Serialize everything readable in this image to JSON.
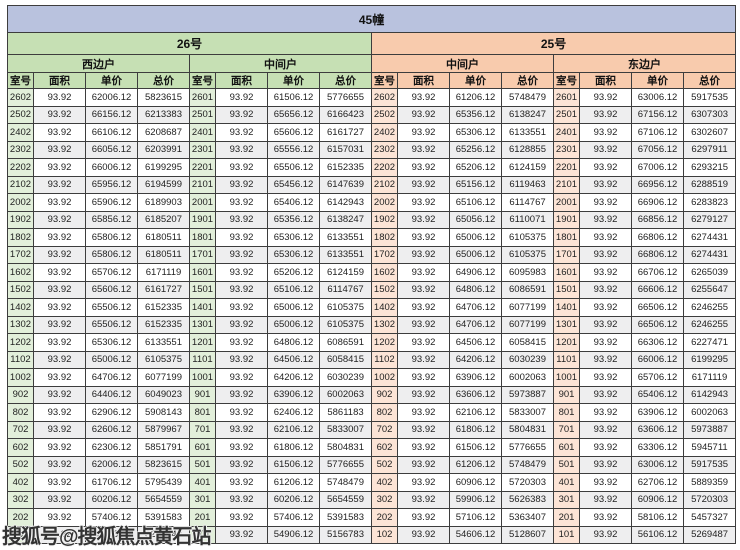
{
  "page_title": "45幢",
  "sections": [
    {
      "name": "26号",
      "units": [
        "西边户",
        "中间户"
      ]
    },
    {
      "name": "25号",
      "units": [
        "中间户",
        "东边户"
      ]
    }
  ],
  "columns": [
    "室号",
    "面积",
    "单价",
    "总价"
  ],
  "watermark": "搜狐号@搜狐焦点黄石站",
  "colors": {
    "title_bg": "#b9c2de",
    "building26_bg": "#c6e0b4",
    "building25_bg": "#f8cbad",
    "room_green": "#e2efda",
    "room_orange": "#fce4d6",
    "zebra": "#eeeeef",
    "border": "#3d3d3d"
  },
  "rows": [
    [
      "2602",
      "93.92",
      "62006.12",
      "5823615",
      "2601",
      "93.92",
      "61506.12",
      "5776655",
      "2602",
      "93.92",
      "61206.12",
      "5748479",
      "2601",
      "93.92",
      "63006.12",
      "5917535"
    ],
    [
      "2502",
      "93.92",
      "66156.12",
      "6213383",
      "2501",
      "93.92",
      "65656.12",
      "6166423",
      "2502",
      "93.92",
      "65356.12",
      "6138247",
      "2501",
      "93.92",
      "67156.12",
      "6307303"
    ],
    [
      "2402",
      "93.92",
      "66106.12",
      "6208687",
      "2401",
      "93.92",
      "65606.12",
      "6161727",
      "2402",
      "93.92",
      "65306.12",
      "6133551",
      "2401",
      "93.92",
      "67106.12",
      "6302607"
    ],
    [
      "2302",
      "93.92",
      "66056.12",
      "6203991",
      "2301",
      "93.92",
      "65556.12",
      "6157031",
      "2302",
      "93.92",
      "65256.12",
      "6128855",
      "2301",
      "93.92",
      "67056.12",
      "6297911"
    ],
    [
      "2202",
      "93.92",
      "66006.12",
      "6199295",
      "2201",
      "93.92",
      "65506.12",
      "6152335",
      "2202",
      "93.92",
      "65206.12",
      "6124159",
      "2201",
      "93.92",
      "67006.12",
      "6293215"
    ],
    [
      "2102",
      "93.92",
      "65956.12",
      "6194599",
      "2101",
      "93.92",
      "65456.12",
      "6147639",
      "2102",
      "93.92",
      "65156.12",
      "6119463",
      "2101",
      "93.92",
      "66956.12",
      "6288519"
    ],
    [
      "2002",
      "93.92",
      "65906.12",
      "6189903",
      "2001",
      "93.92",
      "65406.12",
      "6142943",
      "2002",
      "93.92",
      "65106.12",
      "6114767",
      "2001",
      "93.92",
      "66906.12",
      "6283823"
    ],
    [
      "1902",
      "93.92",
      "65856.12",
      "6185207",
      "1901",
      "93.92",
      "65356.12",
      "6138247",
      "1902",
      "93.92",
      "65056.12",
      "6110071",
      "1901",
      "93.92",
      "66856.12",
      "6279127"
    ],
    [
      "1802",
      "93.92",
      "65806.12",
      "6180511",
      "1801",
      "93.92",
      "65306.12",
      "6133551",
      "1802",
      "93.92",
      "65006.12",
      "6105375",
      "1801",
      "93.92",
      "66806.12",
      "6274431"
    ],
    [
      "1702",
      "93.92",
      "65806.12",
      "6180511",
      "1701",
      "93.92",
      "65306.12",
      "6133551",
      "1702",
      "93.92",
      "65006.12",
      "6105375",
      "1701",
      "93.92",
      "66806.12",
      "6274431"
    ],
    [
      "1602",
      "93.92",
      "65706.12",
      "6171119",
      "1601",
      "93.92",
      "65206.12",
      "6124159",
      "1602",
      "93.92",
      "64906.12",
      "6095983",
      "1601",
      "93.92",
      "66706.12",
      "6265039"
    ],
    [
      "1502",
      "93.92",
      "65606.12",
      "6161727",
      "1501",
      "93.92",
      "65106.12",
      "6114767",
      "1502",
      "93.92",
      "64806.12",
      "6086591",
      "1501",
      "93.92",
      "66606.12",
      "6255647"
    ],
    [
      "1402",
      "93.92",
      "65506.12",
      "6152335",
      "1401",
      "93.92",
      "65006.12",
      "6105375",
      "1402",
      "93.92",
      "64706.12",
      "6077199",
      "1401",
      "93.92",
      "66506.12",
      "6246255"
    ],
    [
      "1302",
      "93.92",
      "65506.12",
      "6152335",
      "1301",
      "93.92",
      "65006.12",
      "6105375",
      "1302",
      "93.92",
      "64706.12",
      "6077199",
      "1301",
      "93.92",
      "66506.12",
      "6246255"
    ],
    [
      "1202",
      "93.92",
      "65306.12",
      "6133551",
      "1201",
      "93.92",
      "64806.12",
      "6086591",
      "1202",
      "93.92",
      "64506.12",
      "6058415",
      "1201",
      "93.92",
      "66306.12",
      "6227471"
    ],
    [
      "1102",
      "93.92",
      "65006.12",
      "6105375",
      "1101",
      "93.92",
      "64506.12",
      "6058415",
      "1102",
      "93.92",
      "64206.12",
      "6030239",
      "1101",
      "93.92",
      "66006.12",
      "6199295"
    ],
    [
      "1002",
      "93.92",
      "64706.12",
      "6077199",
      "1001",
      "93.92",
      "64206.12",
      "6030239",
      "1002",
      "93.92",
      "63906.12",
      "6002063",
      "1001",
      "93.92",
      "65706.12",
      "6171119"
    ],
    [
      "902",
      "93.92",
      "64406.12",
      "6049023",
      "901",
      "93.92",
      "63906.12",
      "6002063",
      "902",
      "93.92",
      "63606.12",
      "5973887",
      "901",
      "93.92",
      "65406.12",
      "6142943"
    ],
    [
      "802",
      "93.92",
      "62906.12",
      "5908143",
      "801",
      "93.92",
      "62406.12",
      "5861183",
      "802",
      "93.92",
      "62106.12",
      "5833007",
      "801",
      "93.92",
      "63906.12",
      "6002063"
    ],
    [
      "702",
      "93.92",
      "62606.12",
      "5879967",
      "701",
      "93.92",
      "62106.12",
      "5833007",
      "702",
      "93.92",
      "61806.12",
      "5804831",
      "701",
      "93.92",
      "63606.12",
      "5973887"
    ],
    [
      "602",
      "93.92",
      "62306.12",
      "5851791",
      "601",
      "93.92",
      "61806.12",
      "5804831",
      "602",
      "93.92",
      "61506.12",
      "5776655",
      "601",
      "93.92",
      "63306.12",
      "5945711"
    ],
    [
      "502",
      "93.92",
      "62006.12",
      "5823615",
      "501",
      "93.92",
      "61506.12",
      "5776655",
      "502",
      "93.92",
      "61206.12",
      "5748479",
      "501",
      "93.92",
      "63006.12",
      "5917535"
    ],
    [
      "402",
      "93.92",
      "61706.12",
      "5795439",
      "401",
      "93.92",
      "61206.12",
      "5748479",
      "402",
      "93.92",
      "60906.12",
      "5720303",
      "401",
      "93.92",
      "62706.12",
      "5889359"
    ],
    [
      "302",
      "93.92",
      "60206.12",
      "5654559",
      "301",
      "93.92",
      "60206.12",
      "5654559",
      "302",
      "93.92",
      "59906.12",
      "5626383",
      "301",
      "93.92",
      "60906.12",
      "5720303"
    ],
    [
      "202",
      "93.92",
      "57406.12",
      "5391583",
      "201",
      "93.92",
      "57406.12",
      "5391583",
      "202",
      "93.92",
      "57106.12",
      "5363407",
      "201",
      "93.92",
      "58106.12",
      "5457327"
    ],
    [
      "102",
      "93.92",
      "55406.12",
      "5203743",
      "101",
      "93.92",
      "54906.12",
      "5156783",
      "102",
      "93.92",
      "54606.12",
      "5128607",
      "101",
      "93.92",
      "56106.12",
      "5269487"
    ]
  ]
}
